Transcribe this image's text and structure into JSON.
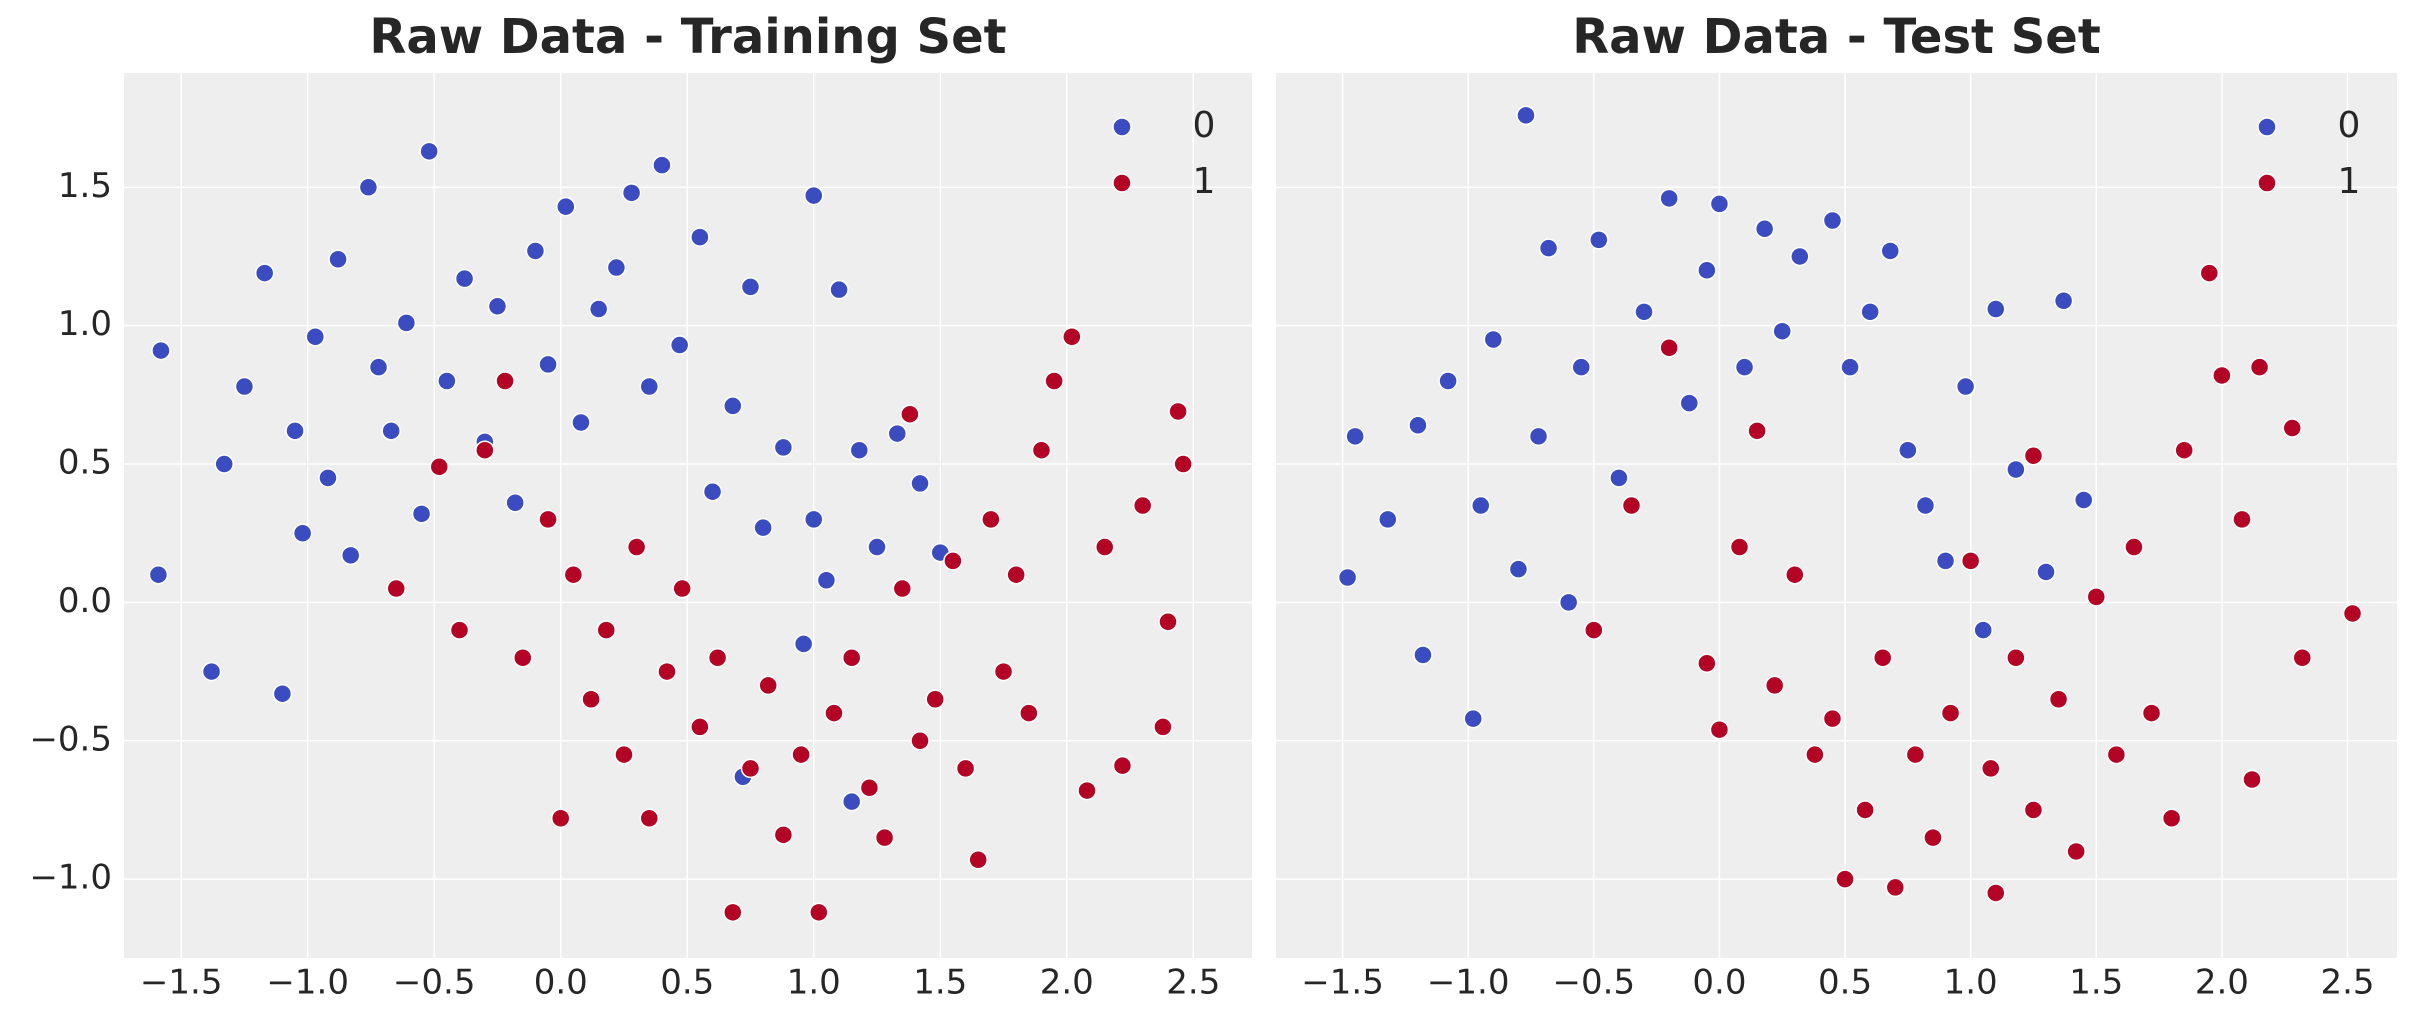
{
  "chart_data": [
    {
      "type": "scatter",
      "title": "Raw Data - Training Set",
      "series": [
        {
          "name": "0",
          "color": "#3b4cc0",
          "x": [
            -1.58,
            -1.59,
            -1.38,
            -1.33,
            -1.25,
            -1.17,
            -1.1,
            -1.05,
            -1.02,
            -0.97,
            -0.92,
            -0.88,
            -0.83,
            -0.76,
            -0.72,
            -0.67,
            -0.61,
            -0.55,
            -0.52,
            -0.45,
            -0.38,
            -0.3,
            -0.25,
            -0.18,
            -0.1,
            -0.05,
            0.02,
            0.08,
            0.15,
            0.22,
            0.28,
            0.35,
            0.4,
            0.47,
            0.55,
            0.6,
            0.68,
            0.75,
            0.8,
            0.88,
            0.96,
            1.0,
            1.05,
            1.1,
            1.18,
            1.25,
            1.33,
            1.42,
            1.5,
            1.15,
            0.72,
            1.0
          ],
          "values": [
            0.91,
            0.1,
            -0.25,
            0.5,
            0.78,
            1.19,
            -0.33,
            0.62,
            0.25,
            0.96,
            0.45,
            1.24,
            0.17,
            1.5,
            0.85,
            0.62,
            1.01,
            0.32,
            1.63,
            0.8,
            1.17,
            0.58,
            1.07,
            0.36,
            1.27,
            0.86,
            1.43,
            0.65,
            1.06,
            1.21,
            1.48,
            0.78,
            1.58,
            0.93,
            1.32,
            0.4,
            0.71,
            1.14,
            0.27,
            0.56,
            -0.15,
            1.47,
            0.08,
            1.13,
            0.55,
            0.2,
            0.61,
            0.43,
            0.18,
            -0.72,
            -0.63,
            0.3
          ]
        },
        {
          "name": "1",
          "color": "#b40426",
          "x": [
            -0.65,
            -0.48,
            -0.4,
            -0.3,
            -0.22,
            -0.15,
            -0.05,
            0.0,
            0.05,
            0.12,
            0.18,
            0.25,
            0.3,
            0.35,
            0.42,
            0.48,
            0.55,
            0.62,
            0.68,
            0.75,
            0.82,
            0.88,
            0.95,
            1.02,
            1.08,
            1.15,
            1.22,
            1.28,
            1.35,
            1.42,
            1.48,
            1.55,
            1.6,
            1.65,
            1.7,
            1.75,
            1.8,
            1.85,
            1.9,
            1.95,
            2.02,
            2.08,
            2.15,
            2.22,
            2.3,
            2.38,
            2.44,
            2.46,
            2.4,
            1.38
          ],
          "values": [
            0.05,
            0.49,
            -0.1,
            0.55,
            0.8,
            -0.2,
            0.3,
            -0.78,
            0.1,
            -0.35,
            -0.1,
            -0.55,
            0.2,
            -0.78,
            -0.25,
            0.05,
            -0.45,
            -0.2,
            -1.12,
            -0.6,
            -0.3,
            -0.84,
            -0.55,
            -1.12,
            -0.4,
            -0.2,
            -0.67,
            -0.85,
            0.05,
            -0.5,
            -0.35,
            0.15,
            -0.6,
            -0.93,
            0.3,
            -0.25,
            0.1,
            -0.4,
            0.55,
            0.8,
            0.96,
            -0.68,
            0.2,
            -0.59,
            0.35,
            -0.45,
            0.69,
            0.5,
            -0.07,
            0.68
          ]
        }
      ],
      "xlim": [
        -1.726,
        2.732
      ],
      "ylim": [
        -1.285,
        1.913
      ],
      "xticks": [
        {
          "value": -1.5,
          "label": "−1.5"
        },
        {
          "value": -1,
          "label": "−1.0"
        },
        {
          "value": -0.5,
          "label": "−0.5"
        },
        {
          "value": 0,
          "label": "0.0"
        },
        0.5,
        {
          "value": 1,
          "label": "1.0"
        },
        1.5,
        {
          "value": 2,
          "label": "2.0"
        },
        2.5
      ],
      "yticks": [
        {
          "value": -1,
          "label": "−1.0"
        },
        {
          "value": -0.5,
          "label": "−0.5"
        },
        {
          "value": 0,
          "label": "0.0"
        },
        0.5,
        {
          "value": 1,
          "label": "1.0"
        },
        1.5
      ],
      "grid": true,
      "legend": "upper right"
    },
    {
      "type": "scatter",
      "title": "Raw Data - Test Set",
      "series": [
        {
          "name": "0",
          "color": "#3b4cc0",
          "x": [
            -1.48,
            -1.45,
            -1.32,
            -1.2,
            -1.18,
            -1.08,
            -0.98,
            -0.95,
            -0.9,
            -0.8,
            -0.77,
            -0.72,
            -0.68,
            -0.6,
            -0.55,
            -0.48,
            -0.4,
            -0.3,
            -0.2,
            -0.12,
            -0.05,
            0.0,
            0.1,
            0.18,
            0.25,
            0.32,
            0.45,
            0.52,
            0.6,
            0.68,
            0.75,
            0.82,
            0.9,
            0.98,
            1.05,
            1.1,
            1.18,
            1.3,
            1.37,
            1.45
          ],
          "values": [
            0.09,
            0.6,
            0.3,
            0.64,
            -0.19,
            0.8,
            -0.42,
            0.35,
            0.95,
            0.12,
            1.76,
            0.6,
            1.28,
            0.0,
            0.85,
            1.31,
            0.45,
            1.05,
            1.46,
            0.72,
            1.2,
            1.44,
            0.85,
            1.35,
            0.98,
            1.25,
            1.38,
            0.85,
            1.05,
            1.27,
            0.55,
            0.35,
            0.15,
            0.78,
            -0.1,
            1.06,
            0.48,
            0.11,
            1.09,
            0.37
          ]
        },
        {
          "name": "1",
          "color": "#b40426",
          "x": [
            -0.5,
            -0.35,
            -0.2,
            -0.05,
            0.0,
            0.08,
            0.15,
            0.22,
            0.3,
            0.38,
            0.45,
            0.5,
            0.58,
            0.65,
            0.7,
            0.78,
            0.85,
            0.92,
            1.0,
            1.08,
            1.1,
            1.18,
            1.25,
            1.35,
            1.42,
            1.5,
            1.58,
            1.65,
            1.72,
            1.8,
            1.85,
            1.95,
            2.0,
            2.08,
            2.12,
            2.15,
            2.28,
            2.32,
            2.52,
            1.25
          ],
          "values": [
            -0.1,
            0.35,
            0.92,
            -0.22,
            -0.46,
            0.2,
            0.62,
            -0.3,
            0.1,
            -0.55,
            -0.42,
            -1.0,
            -0.75,
            -0.2,
            -1.03,
            -0.55,
            -0.85,
            -0.4,
            0.15,
            -0.6,
            -1.05,
            -0.2,
            -0.75,
            -0.35,
            -0.9,
            0.02,
            -0.55,
            0.2,
            -0.4,
            -0.78,
            0.55,
            1.19,
            0.82,
            0.3,
            -0.64,
            0.85,
            0.63,
            -0.2,
            -0.04,
            0.53
          ]
        }
      ],
      "xlim": [
        -1.765,
        2.697
      ],
      "ylim": [
        -1.285,
        1.913
      ],
      "xticks": [
        {
          "value": -1.5,
          "label": "−1.5"
        },
        {
          "value": -1,
          "label": "−1.0"
        },
        {
          "value": -0.5,
          "label": "−0.5"
        },
        {
          "value": 0,
          "label": "0.0"
        },
        0.5,
        {
          "value": 1,
          "label": "1.0"
        },
        1.5,
        {
          "value": 2,
          "label": "2.0"
        },
        2.5
      ],
      "yticks": [
        -1,
        -0.5,
        0,
        0.5,
        1,
        1.5
      ],
      "sharey": true,
      "grid": true,
      "legend": "upper right"
    }
  ]
}
